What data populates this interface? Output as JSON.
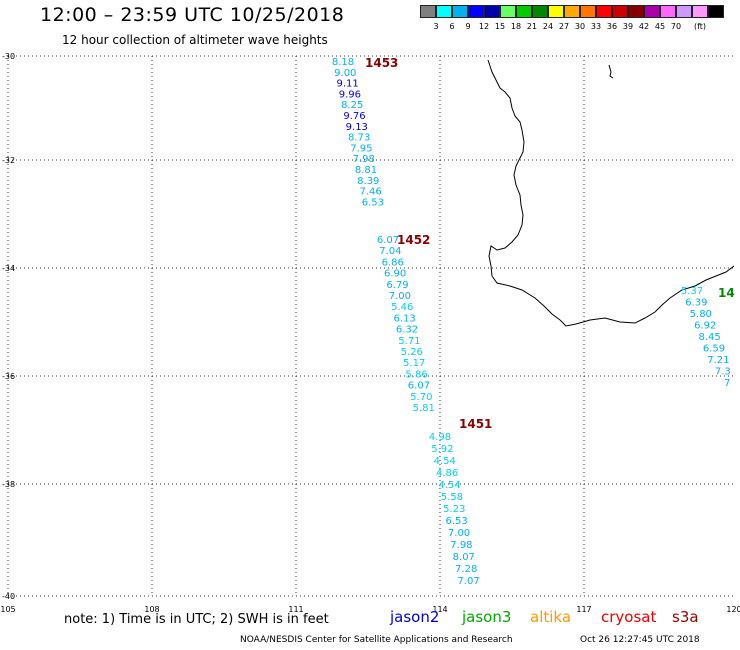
{
  "title": "12:00 – 23:59 UTC 10/25/2018",
  "subtitle": "12 hour collection of altimeter wave heights",
  "colorbar": {
    "labels": [
      "3",
      "6",
      "9",
      "12",
      "15",
      "18",
      "21",
      "24",
      "27",
      "30",
      "33",
      "36",
      "39",
      "42",
      "45",
      "70",
      "(ft)"
    ],
    "colors": [
      "#808080",
      "#00ffff",
      "#00b2ee",
      "#0000ff",
      "#0000aa",
      "#66ff66",
      "#00cc00",
      "#008800",
      "#ffff00",
      "#ffaa00",
      "#ff7700",
      "#ff0000",
      "#cc0000",
      "#880000",
      "#aa00aa",
      "#ff66ff",
      "#cc99ff",
      "#ff99ff",
      "#000000"
    ]
  },
  "axes": {
    "latitude_labels": [
      "-30",
      "-32",
      "-34",
      "-36",
      "-38",
      "-40"
    ],
    "longitude_labels": [
      "105",
      "108",
      "111",
      "114",
      "117",
      "120"
    ]
  },
  "passes": [
    {
      "label": "1453",
      "color": "#880000"
    },
    {
      "label": "1452",
      "color": "#880000"
    },
    {
      "label": "1451",
      "color": "#880000"
    },
    {
      "label": "14",
      "color": "#008800"
    }
  ],
  "tracks": [
    {
      "name": "track-1453",
      "color": "#00b2ee",
      "values": [
        "8.18",
        "9.00",
        "9.11",
        "9.96",
        "8.25",
        "9.76",
        "9.13",
        "8.73",
        "7.95",
        "7.98",
        "8.81",
        "8.39",
        "7.46",
        "6.53"
      ],
      "value_colors": [
        "#00b2ee",
        "#00b2ee",
        "#0000aa",
        "#0000ff",
        "#00b2ee",
        "#0000ff",
        "#0000aa",
        "#00b2ee",
        "#00b2ee",
        "#00b2ee",
        "#00b2ee",
        "#00b2ee",
        "#00b2ee",
        "#00b2ee"
      ]
    },
    {
      "name": "track-1452",
      "color": "#00b2ee",
      "values": [
        "6.07",
        "7.04",
        "6.86",
        "6.90",
        "6.79",
        "7.00",
        "5.46",
        "6.13",
        "6.32",
        "5.71",
        "5.26",
        "5.17",
        "5.86",
        "6.07",
        "5.70",
        "5.81"
      ],
      "value_colors": [
        "#00b2ee",
        "#00b2ee",
        "#00b2ee",
        "#00b2ee",
        "#00b2ee",
        "#00b2ee",
        "#00d0ee",
        "#00b2ee",
        "#00b2ee",
        "#00d0ee",
        "#00d0ee",
        "#00d0ee",
        "#00d0ee",
        "#00b2ee",
        "#00d0ee",
        "#00d0ee"
      ]
    },
    {
      "name": "track-1451",
      "color": "#00d0ee",
      "values": [
        "4.98",
        "5.92",
        "4.54",
        "4.86",
        "4.54",
        "5.58",
        "5.23",
        "6.53",
        "7.00",
        "7.98",
        "8.07",
        "7.28",
        "7.07"
      ],
      "value_colors": [
        "#00d0ee",
        "#00d0ee",
        "#00d0ee",
        "#00d0ee",
        "#00d0ee",
        "#00d0ee",
        "#00d0ee",
        "#00b2ee",
        "#00b2ee",
        "#00b2ee",
        "#00b2ee",
        "#00b2ee",
        "#00b2ee"
      ]
    },
    {
      "name": "track-east",
      "color": "#00b2ee",
      "values": [
        "5.37",
        "6.39",
        "5.80",
        "6.92",
        "8.45",
        "6.59",
        "7.21",
        "7.3",
        "7"
      ],
      "value_colors": [
        "#00d0ee",
        "#00b2ee",
        "#00b2ee",
        "#00b2ee",
        "#00b2ee",
        "#00b2ee",
        "#00b2ee",
        "#00b2ee",
        "#00b2ee"
      ]
    }
  ],
  "note": "note:  1) Time is in UTC;  2) SWH is in feet",
  "satellites": [
    {
      "name": "jason2",
      "color": "#0000dd"
    },
    {
      "name": "jason3",
      "color": "#00aa00"
    },
    {
      "name": "altika",
      "color": "#ff9900"
    },
    {
      "name": "cryosat",
      "color": "#ee0000"
    },
    {
      "name": "s3a",
      "color": "#990000"
    }
  ],
  "credit": "NOAA/NESDIS Center for Satellite Applications and Research",
  "timestamp": "Oct 26 12:27:45 UTC 2018"
}
